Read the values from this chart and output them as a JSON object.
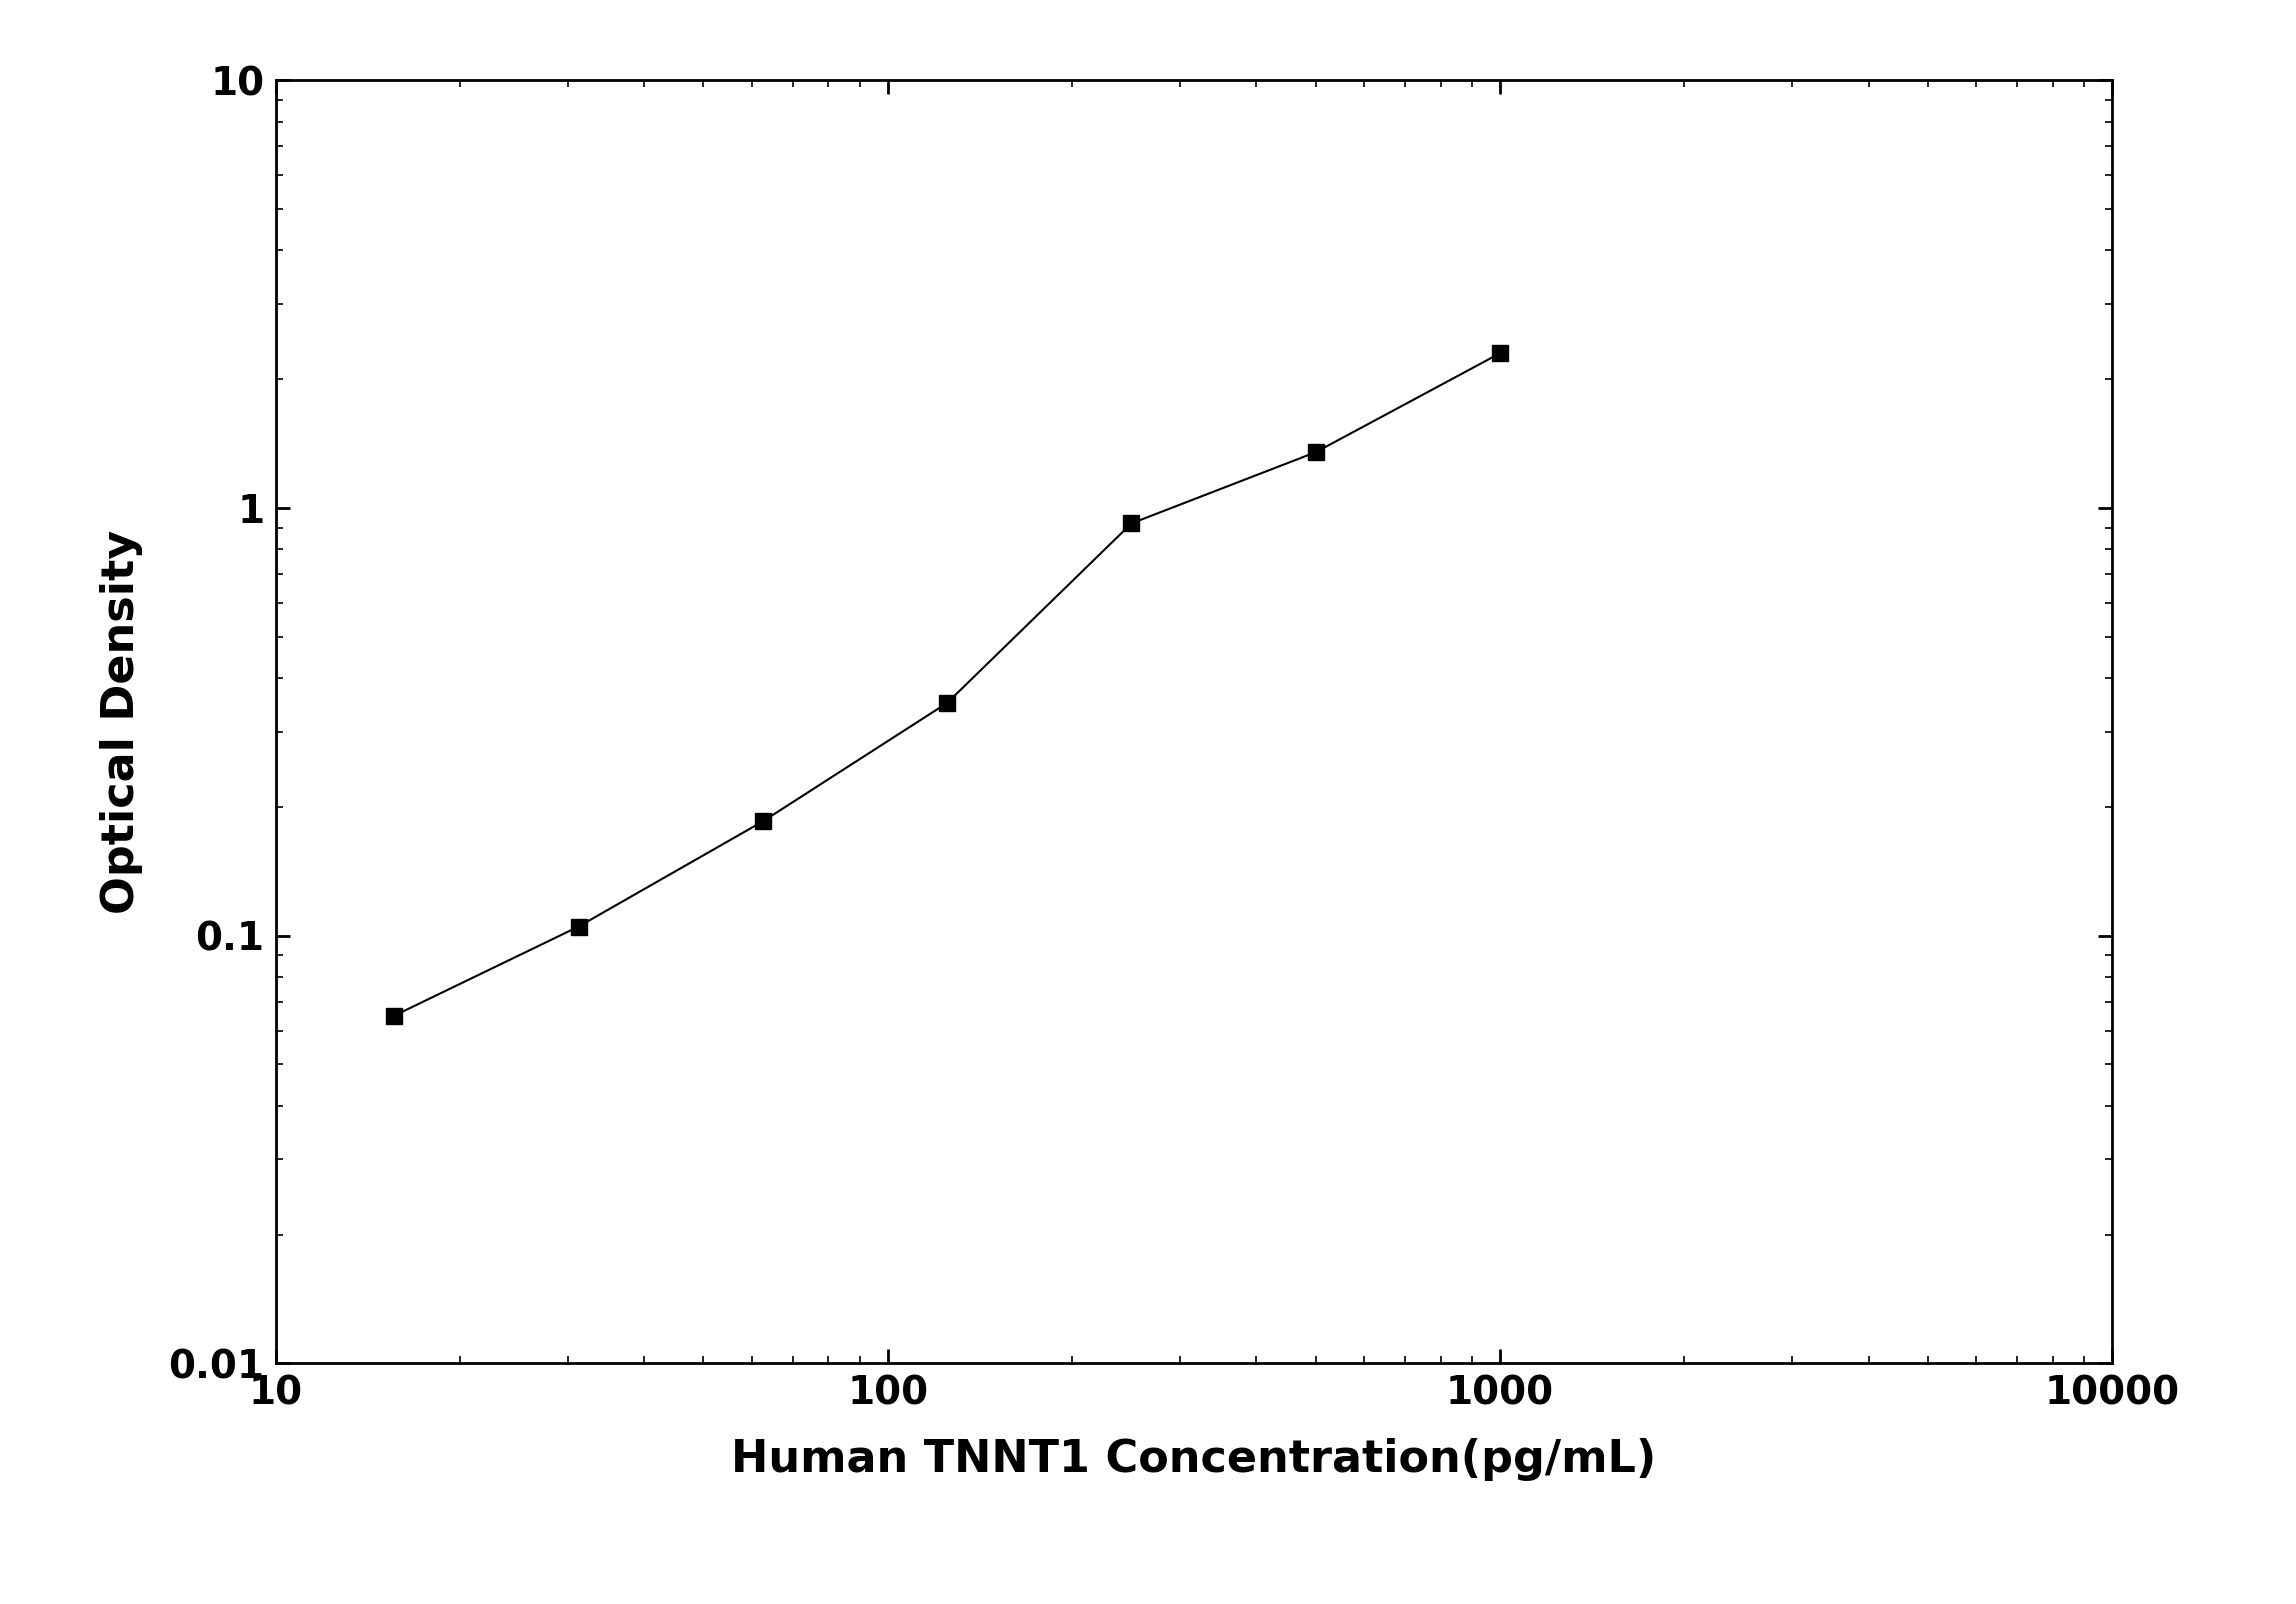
{
  "x_values": [
    15.625,
    31.25,
    62.5,
    125,
    250,
    500,
    1000
  ],
  "y_values": [
    0.065,
    0.105,
    0.185,
    0.35,
    0.92,
    1.35,
    2.3
  ],
  "xlabel": "Human TNNT1 Concentration(pg/mL)",
  "ylabel": "Optical Density",
  "xlim": [
    10,
    10000
  ],
  "ylim": [
    0.01,
    10
  ],
  "background_color": "#ffffff",
  "line_color": "#000000",
  "marker": "s",
  "marker_size": 12,
  "marker_color": "#000000",
  "line_width": 1.5,
  "xlabel_fontsize": 32,
  "ylabel_fontsize": 32,
  "tick_fontsize": 28,
  "tick_label_weight": "bold",
  "axis_label_weight": "bold",
  "x_tick_labels": [
    "10",
    "100",
    "1000",
    "10000"
  ],
  "x_tick_values": [
    10,
    100,
    1000,
    10000
  ],
  "y_tick_labels": [
    "0.01",
    "0.1",
    "1",
    "10"
  ],
  "y_tick_values": [
    0.01,
    0.1,
    1,
    10
  ]
}
